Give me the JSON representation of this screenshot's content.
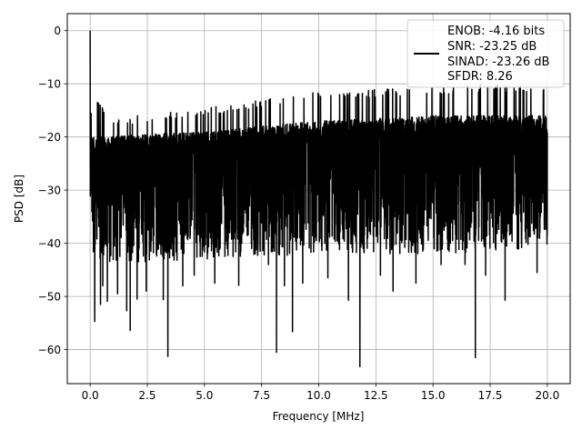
{
  "chart_data": {
    "type": "line",
    "title": "",
    "xlabel": "Frequency [MHz]",
    "ylabel": "PSD [dB]",
    "xlim": [
      -1.0,
      21.0
    ],
    "ylim": [
      -66.4,
      3.2
    ],
    "x_ticks": [
      0.0,
      2.5,
      5.0,
      7.5,
      10.0,
      12.5,
      15.0,
      17.5,
      20.0
    ],
    "x_tick_labels": [
      "0.0",
      "2.5",
      "5.0",
      "7.5",
      "10.0",
      "12.5",
      "15.0",
      "17.5",
      "20.0"
    ],
    "y_ticks": [
      0,
      -10,
      -20,
      -30,
      -40,
      -50,
      -60
    ],
    "y_tick_labels": [
      "0",
      "−10",
      "−20",
      "−30",
      "−40",
      "−50",
      "−60"
    ],
    "grid": true,
    "legend": {
      "placement": "top-right",
      "lines": [
        "ENOB: -4.16 bits",
        "SNR: -23.25 dB",
        "SINAD: -23.26 dB",
        "SFDR: 8.26"
      ]
    },
    "series": [
      {
        "color": "#000000",
        "spectrum_summary": {
          "x_range": [
            0.0,
            20.0
          ],
          "peak": {
            "x": 0.0,
            "y": 0.0
          },
          "upper_envelope": [
            [
              0.05,
              -12.0
            ],
            [
              1.0,
              -16.5
            ],
            [
              3.0,
              -15.5
            ],
            [
              5.0,
              -14.5
            ],
            [
              7.5,
              -13.0
            ],
            [
              10.0,
              -11.5
            ],
            [
              12.5,
              -11.0
            ],
            [
              15.0,
              -10.5
            ],
            [
              17.5,
              -10.0
            ],
            [
              20.0,
              -10.5
            ]
          ],
          "noise_band": [
            [
              0.05,
              -38,
              -20
            ],
            [
              5.0,
              -37,
              -19
            ],
            [
              10.0,
              -36,
              -17
            ],
            [
              15.0,
              -36,
              -16
            ],
            [
              20.0,
              -35,
              -16
            ]
          ],
          "deep_dips": [
            [
              0.2,
              -54.7
            ],
            [
              0.45,
              -51.5
            ],
            [
              0.55,
              -48
            ],
            [
              0.75,
              -50.9
            ],
            [
              1.2,
              -49.5
            ],
            [
              1.6,
              -52.7
            ],
            [
              1.75,
              -56.4
            ],
            [
              2.05,
              -50.5
            ],
            [
              2.45,
              -49
            ],
            [
              3.2,
              -50.6
            ],
            [
              3.4,
              -61.3
            ],
            [
              4.05,
              -48
            ],
            [
              4.55,
              -46
            ],
            [
              5.45,
              -47.5
            ],
            [
              6.5,
              -47.9
            ],
            [
              7.8,
              -44
            ],
            [
              8.15,
              -60.5
            ],
            [
              8.5,
              -48
            ],
            [
              8.85,
              -56.6
            ],
            [
              9.3,
              -47.5
            ],
            [
              10.4,
              -46.5
            ],
            [
              11.3,
              -50.7
            ],
            [
              11.8,
              -63.2
            ],
            [
              12.7,
              -46
            ],
            [
              13.25,
              -49
            ],
            [
              14.25,
              -47.5
            ],
            [
              15.35,
              -44
            ],
            [
              16.4,
              -44
            ],
            [
              16.85,
              -61.5
            ],
            [
              17.3,
              -46
            ],
            [
              18.15,
              -50.7
            ],
            [
              19.55,
              -45.5
            ]
          ]
        }
      }
    ]
  }
}
